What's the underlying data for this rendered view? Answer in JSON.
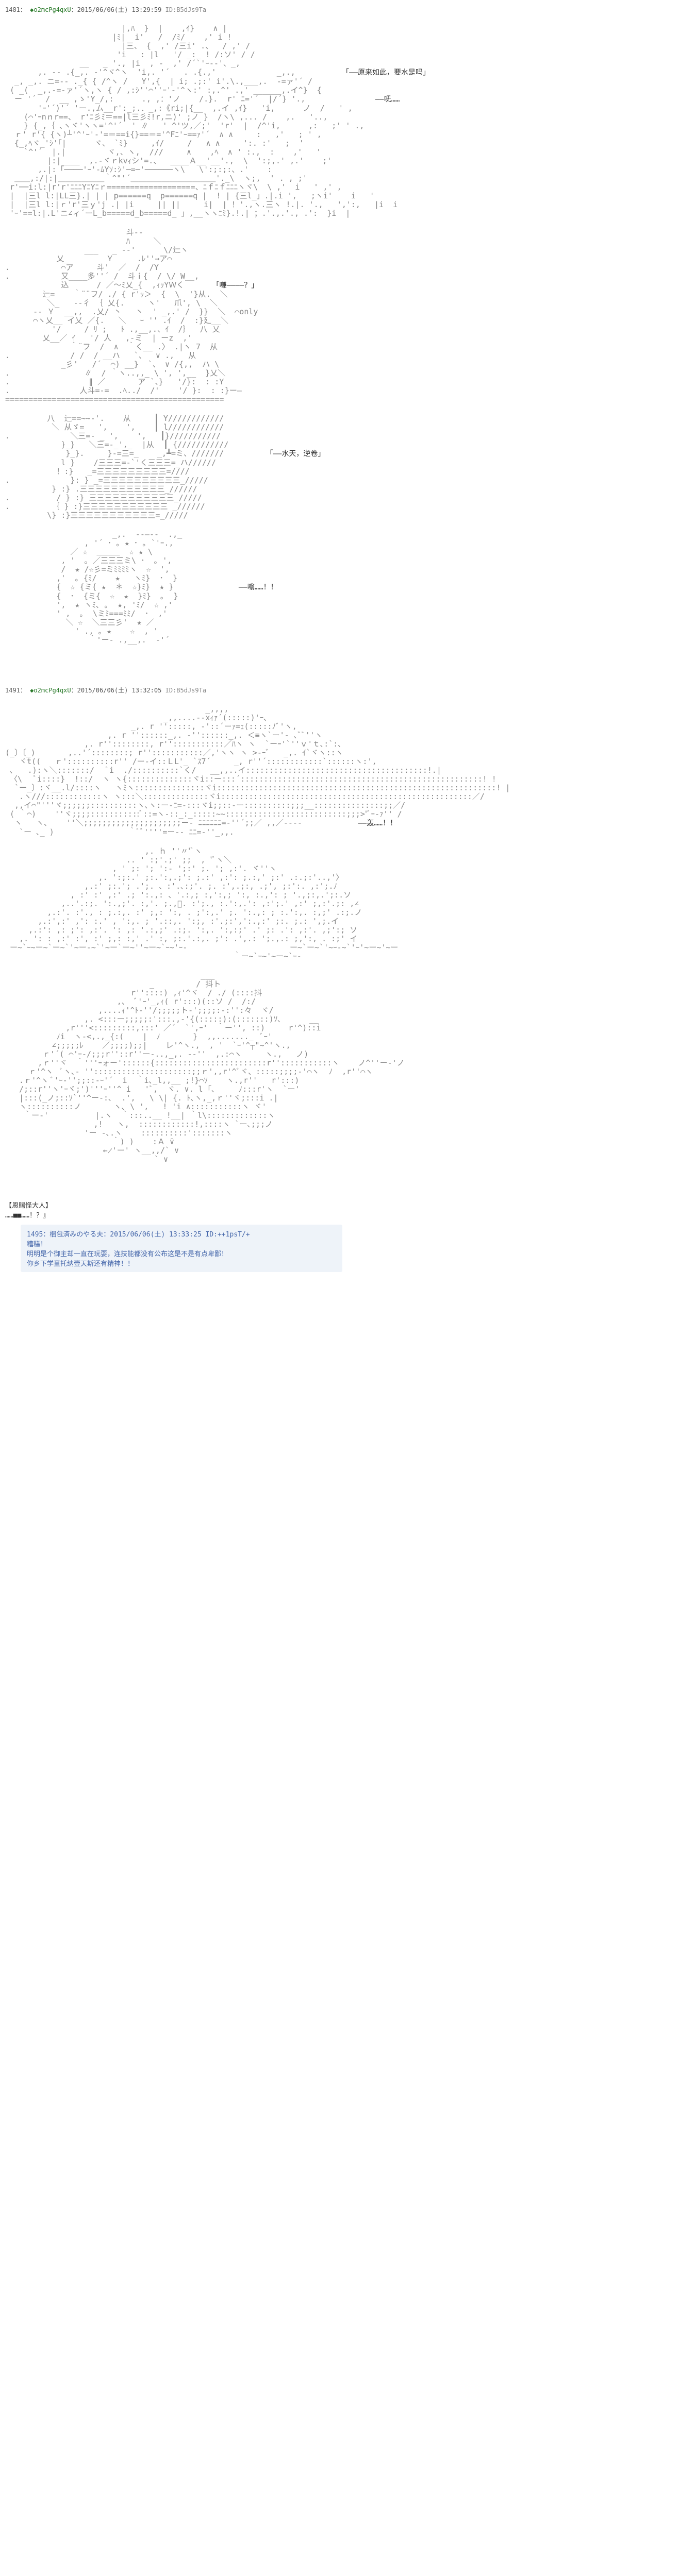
{
  "posts": [
    {
      "header": {
        "num": "1481",
        "name": "◆o2mcPg4qxU",
        "date": "2015/06/06(土) 13:29:59",
        "id": "ID:B5dJs9Ta"
      },
      "sections": [
        {
          "aa": "                         |,ﾊ  }  |    ,ｲ}    ∧ |\n                       |ﾐ|  i'   /  /ﾐ/    ,' i !\n                         |三、 {  ,' /三i' .、  / ,' /\n                        'i   : |l   '/ _:_ ! /:ソ' / /\n                __   _ '., |i  , -  ,' /´`'ｰ--'、_,\n       ,. -- .{_,. -'^ヾ^ヽ  'i,. '´   . .{.,'             _,.,          <span class=\"dialogue\">「——原来如此，要水是吗」</span>\n  _, _,. ニ=-- ._{ { /^ヽ /   Y',{  | i; .;:' i'.\\.,___,.  -=ァ'´ /\n ( _(  _,.-=‐ァ'´ヽ,ヽ { / ,:ｼ''⌒''ｰ'-'^ヽ:' :,.^' .,' ______,.イ^}  {\n  ー '´  /  __ ,ゝ'Y_/,:      ., ,：'ノ    /.}.  r' ﾆ='´  |/´} '.,               <span class=\"dialogue\">——呒……</span>\n       'ｰ'´)'´ 'ー.,ム__r':_;.．_,:《ri;|{__  ,.イ ,ｲ}   'i,      ノ  /   ' ,\n    (⌒'ｰnｎr==、 r'ﾆ彡ﾐ＝==|l三彡ﾐ!r,ニ)' ;ノ }  /ヽ\\ ,... /    ,.   '..,\n    } {_,｛ ､ヽヾ'ヽヽ='^'´  ' ∥   ' ^'ツ,／;'  'r'  |  /^'i,      ,:   ;' ' .,\n  ｒ' r'{ {ヽ)┴'^'ｰ'-'=＝==i{}==＝='^Fﾆ'ｰ==ｧ'´  ∧ ∧     :   ,'   ; ' ,\n  {_,ﾍヾ_'ｼ'｢|      ヾ、 `ﾐ}     ,ｲ/     /   ∧ ∧     ':. :'   ;  '\n    `^'´  |.|         ヾ,、ヽ,  ///     ∧    ,ﾍ  ∧ ' :.,  :    ,'   '\n         |:|____  ,.-ヾｒkvｨシ'=.、  ____Ａ__'__'.,  \\  ':;,.' ,.'    ;'\n       ,.|:「────'ｰ'-ﾑYｿ:ｼ'─=─'──────ヽ\\   \\':;:;:、.'    :\n  ＿＿,:/|:|＿＿＿＿＿＿｀^\"'´＿＿＿＿＿＿＿＿＿＿＿'._\\  ヽ;,  ' . , ;'\n r'──i:l:|r'r'ﾆﾆﾆYﾆYﾆｒ===================、ﾆｆﾆｆﾆﾆﾆヽヾ\\  \\ ,'  i   ' ,' ,\n |  |三l l:|LL三}.| | | p======q  p======q |  ! | {三l_」.|.i ',   ;ヽi'    i   '\n |  |三l l:|ｒ'r'三ｙ'j .| |i     || ||     i|  | ！'.,ヽ.三ヽ !.|. '.,   ',':,   |i  i\n 'ｰ'==l:|.L'ニ∠ィ´ーL_b=====d_b=====d_ 」,__ヽヽﾆﾐ}.!.| ；.'.,.'., .':  }i  |",
          "dialogue_right": ""
        },
        {
          "aa": "                          斗--\n                          ﾊ     ＼\n                 ___   _ -‐'      \\/辷ヽ\n           乂_        Ｙ     .ﾚ''→ア⌒\n.           ⌒ア     斗'  ／  /  /Y\n.           又____多''´ /  斗ｉ{  / \\/ W__,\n            込      / ／～ﾐ乂_{  ,ｨｯYＷく      <span class=\"dialogue\">「嗛————？」</span>\n        辷=    ｀¨¨フ/ ./ { r'ｯ＞  {  \\  '}从.  ＼\n         ＼_   -‐彳 ｛ 乂{.     ヽ'   爪', \\  ＼\n      -- Ｙ  __,,  .乂/ 丶   丶  ' _,.' /  }}  ＼  ⌒only\n      ⌒ヽ乂__ イ乂 ／{.   ＼   ｰ '' .ｲ  /  :}廴__＼\n          '/     / ﾘ ;   ﾄ .,__,.、ｲ  /｝  八 乂\n        乂__／ ｲ   '/ 人   ,-ミ  | ーz  ,'\n              ｀¨フ  /  ∧  ｀く__ .〉 .|ヽ 7  从\n.             / /  / __ハ   `、  ∨ .,   从\n            _彡'   /´  ⌒) __}  `、 ∨ /{,,  ハ \\\n.                ∥  / ｀ヽ..,,_ \\ ', ',__  }乂＼\n.                 ∥ ／       ア `、}   '/}:  : :Y\n.               人斗=-=  .ﾍ../  /'    '/ }:  : :}ー― \n===============================================",
          "dialogue_right": ""
        },
        {
          "aa": "         八  辷==~~-'.    从     ┃ Y////////////\n          ＼ 从ゞ=   ',    ',    ┃ l////////////\n.             ＼三=- _ ',    ',   ┃}///////////\n            }_}   ＼三=-_',_  |从  ┃ {///////////\n             }_}.     }-=三=_    _,┻=ミ、///////         <span class=\"dialogue\">「——水天，逆卷」</span>\n            l }    /三三三=-`'く三三三=_ハ//////\n           ！:}   _=三三三三三三三三三=////\n.             }: } _=三三三三三三三三三三_/////\n          } :} .三三三三三三三三三三三_//////\n.          / } :} 三三三三三三三三三三三_/////\n.         ｛ } :}三三三三三三三三三三三 _//////\n         \\} :}三三三三三三三三三三三=_/////",
          "dialogue_right": ""
        },
        {
          "aa": "                       _,.  -‐―‐-  .,_\n                 , '´ ･ ｡ ★ ･ ｡ `'ｰ.,\n              ／ ☆  ＿＿＿  ☆ ★ \\\n            , '  ｡ ／三三三ミ\\ ･  ｡ ',\n            /  ★ /☆彡=ミﾐﾐﾐﾐヽ  ☆  ',\n           ,'  ｡ {ﾐ/    ★   ヽﾐ}  ･  }\n           {  ☆ {ミ{ ★  ＊  ☆}ﾐ}  ★ }              <span class=\"dialogue\">——嗡……！！</span>\n           {  ･  {ミ{  ☆  ★  }ﾐ}  ｡  }\n           ',  ★ ヽﾐ､ ｡  ★, 'ﾐ/  ☆ ,'\n           ' ,  ｡  \\ミﾐ===ﾐﾐ/  ･  ,'\n             ＼ ☆  ＼三三彡'  ★ ／\n               ' ., ｡ ★    ☆  , '\n                  ｀'ー- .,__,.  -'´",
          "dialogue_right": ""
        }
      ]
    },
    {
      "header": {
        "num": "1491",
        "name": "◆o2mcPg4qxU",
        "date": "2015/06/06(土) 13:32:05",
        "id": "ID:B5dJs9Ta"
      },
      "sections": [
        {
          "aa": "                                           _,,,,\n                                  _,,....--xｨｧ´(:::::)'ｰ､\n                           _,. r '':::::, -'::´ーｧ=ｪ(:::::ﾉﾞ'ヽ,\n                      ,. r ''::::::_,. -''::::::_,. ＜≡ヽ`ー'- ､ﾞﾞ''ヽ\n                 ,. r''::::::::, r'':::::::::::／ﾊヽ ヽ  `ーｰ'`''ｖ'ｔ､:`:､\n(_〕〔_)       ,..'´::::::::; r'':::::::::::／,'ヽヽ ヽ >-ｰﾞ   _,. ｲ`ヾヽ::ヽ\n   ヾt((   ｒ'::::::::::r'' /ー-イ::ＬL'_ `ｽ7´     _, r''´::::::::::::`::::::ヽ:',\n ､   .):ヽ＼:::::::/   ﾞi  ./::::::::::`く/   __,,..イ:::::::::::::::::::::::::::::::::::::::!.|\n 〈\\   ﾞi::::}  !::/  ヽ ヽ{::::::::::::::ヾi::ー:::´::::::::::::::::::::::::::::::::::::::::::::::::::::! !\n  `ー_〕:ヾ__.l/::::ヽ   ヽﾐヽ:::::::::::::::ヾi::::::::::::::::::::::::::::::::::::::::::::::::::::::::::::! |\n   .ヽ///::::::::::::ヽ ヽ:::＼::::::::::::::ヾi::::::::::::::::::::::::::::::::::::::::::::::::::::::／/\n  ,,イ⌒\"'''ヾ;;;;;;::::::::::ヽ､ヽ:ー-ﾆ=-:::ヾi;;::-ー::::::::::;;;__:::::::::::::::;;／/\n ( ｀⌒)    ''ヾ;;;;:::::::::::ﾞ::=ヽ-::_:_:::::~~::::::::::::::::::::::::::;;;>'ﾞｰ-ｧ'' /\n  ヽ   ヽ､    ''＼;;;;;;;;;;;;;;;;;;;;;ー- ﾆﾆﾆﾆﾆﾆ=-''´;;／ ,,／----            <span class=\"dialogue\">——轰……！！</span>\n   `ー ､_ )                ｀ﾞﾞ''''=ー-- ﾆﾆ=-''_,,.</   (\n                                        `ｰ- ､__ノ",
          "dialogue_right": ""
        },
        {
          "aa": "                              ,. ｈ ''〃'ﾞヽ\n                          .. ' :;'.;' ;;  , 'ﾞヽ＼\n                       , ' ;: '; ':- ';:' ;. '; ,:'. ヾ''ヽ\n                    ,. ':;:.' ;:.':,.;': ;.:' ,:': ;.:,' ;:' .:.;:'..,'〉\n                 ,.:' ;:.'; .';. 、:'.､:;'. ;. :',.;:, .;', ;:':. ,:';.ﾉ\n              , :' :' ,:' .; ':.,: 、'.:,; :,':,; ':, :.,': ; '.,;:,.';:.ソ\n            ,..'.:;. ':.,;'. :,'. ;.,ﾞ. :';., :.':,.': ,:';.' ,:' ;,:'.;: ,∠\n         ,.:'. :'., : ;.:,. :' ;,: ':, . ;':,.' ;. ':.,: ; :.':,. :,;' .:;.ノ\n       ,.:',:' ,': :.' , ':,. ; '.::,. ':;, :'.;:',':.,:' ;:. ;.: ',;.イ\n     ,.:': ,: ;': ,:'. ': ,: '.:,;' .:;. ':,. ':,:;' .' ;: .': ,:'. ,;':; ソ\n   ,. ': : ,:' :', :' ;,: :,' .' :, ;:.'.:,. ;': .',.: ';.,.: ;,':, . :;' イ\n ー~`ｰ~ー~`ー~`'~ー-~`'~ー`ー~''~ー~`ｰ~'ｰ-                      ー~`ー~`'~ｰ-~`'ｰ'~ー~'~ー\n                                                 ｀ー~`ｰ~'~ー~`ｰ-",
          "dialogue_right": ""
        },
        {
          "aa": "                                          ___\n                               _         / 抖ト\n                           r''::::) ,ｨ'^ヾ  / ./ (::::抖\n                        ,、 ﾞ'ｰ'_,ｨ( r':::)(::ソ /  /:/\n                    ,....ｨ'^ﾄ-''/;;;;;ト-';;;;:-:'':々  ヾ/\n                 ,. <:::ー;;;;;:':::.,-'{(:::::):(:::::::)ｿ､      __\n             ,r'''<:::::::::,:::' ／´  `',ｰ'  ｀ー'', ::)     r'^)::i\n           ﾉi  ヽ-<,.,_{:(    |  ﾉ       }  ,,......._  ﾞｰ'\n          ∠;;;;;ﾚ    ／;;;;);;|    レ'^ヽ.,  , '  `ｰ'^┬\"~^'ヽ.,\n        ｒ'´( ⌒'ｰ-/;;;r''::r''ー-..,_,. -‐''  ,.:⌒ヽ     ヽ.,   ノ)\n       ,ｒ''ヾ  ｀'''ｰォー'::::::{::::::::::::::::::::::::r'':::::::::::ヽ    ノ^''ー-'ノ\n     ｒ'^ヽ  ﾞヽ､- '':::::::::::::::::::::;;ｒ',,r'^ﾞヾ、:::::;;;;-'⌒ヽ  ﾉ  ,r''⌒ヽ\n   .ｒ'^ヽ ﾞ'ｰ-'';;::-ｰ'´  i  ｀i､_l,,__ ;!}⌒ｿ    ヽ.,r''   r':::)\n   /;::r''ヽ'ｰヾ;')'''ｰ''^ i   'ﾞ,  ヾ. ∨. l ｢､     ﾉ:::r'ヽ  `ー'\n   |:::(_ノ;::ｿ`''^ー-:､  .',   \\ \\| {. ﾄ､ヽ,_,ｒ''ヾ;:::i .|\n   ヽ::::::::::ノ       ヽ､ \\ ',   ! 'i ∧:::::::::::ヽ ヾ'\n    ｀ー-'          |.ヽ  ｀:::..__ !__| ｀l\\:::::::::::::ヽ\n                   ,!   ヽ,  ::::::::::::!,::::ヽ `ー､;;;ノ\n                 'ー -､.ヽ    ::::::::::':::::::ヽ\n                       ｀) )    :Ａ ̄∨\n                     ←̷'ー' ヽ__,,/` ∨\n                                ` ∨",
          "dialogue_right": ""
        }
      ]
    }
  ],
  "footer": {
    "bracket": "【恩赐怪大人】",
    "line2": "……■■……！？』"
  },
  "comment": {
    "head": "1495：梱包済みのやる夫：2015/06/06(土) 13:33:25 ID:++1psT/+",
    "line1": "糟糕！",
    "line2": "明明是个御主却一直在玩耍，连技能都没有公布这是不是有点卑鄙！",
    "line3": "你乡下学童托纳壹天斯还有精神！！"
  }
}
